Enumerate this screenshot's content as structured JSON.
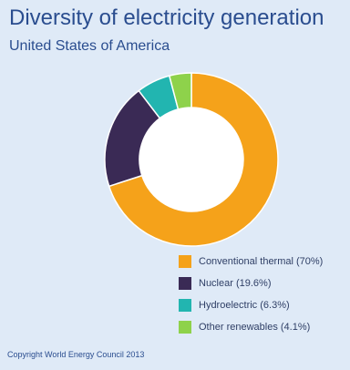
{
  "chart_data": {
    "type": "pie",
    "title": "Diversity of electricity generation",
    "subtitle": "United States of America",
    "categories": [
      "Conventional thermal (70%)",
      "Nuclear (19.6%)",
      "Hydroelectric (6.3%)",
      "Other renewables (4.1%)"
    ],
    "values": [
      70,
      19.6,
      6.3,
      4.1
    ],
    "colors": [
      "#f5a21a",
      "#3a2a55",
      "#22b5b0",
      "#8ed24b"
    ],
    "legend_position": "bottom-right",
    "donut": true
  },
  "copyright": "Copyright World Energy Council 2013"
}
